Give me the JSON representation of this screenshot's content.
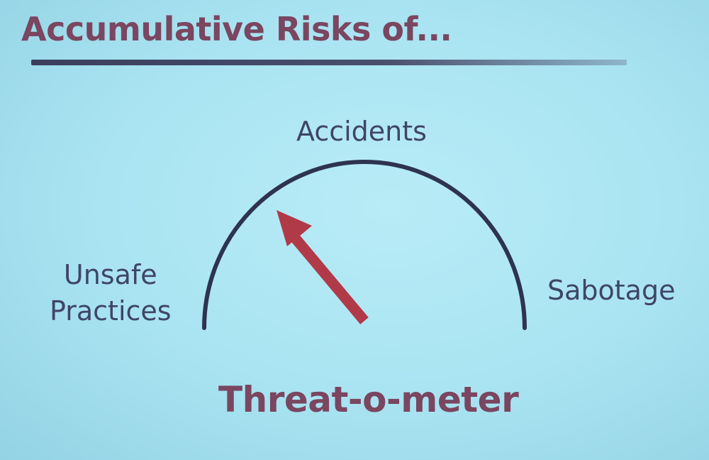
{
  "slide": {
    "title": "Accumulative Risks of..."
  },
  "gauge": {
    "name": "Threat-o-meter",
    "scale_labels": {
      "left": [
        "Unsafe",
        "Practices"
      ],
      "top": "Accidents",
      "right": "Sabotage"
    },
    "needle_position": "between Unsafe Practices and Accidents, closer to Accidents",
    "arc_color": "#2e3350",
    "needle_color": "#b13a48"
  }
}
